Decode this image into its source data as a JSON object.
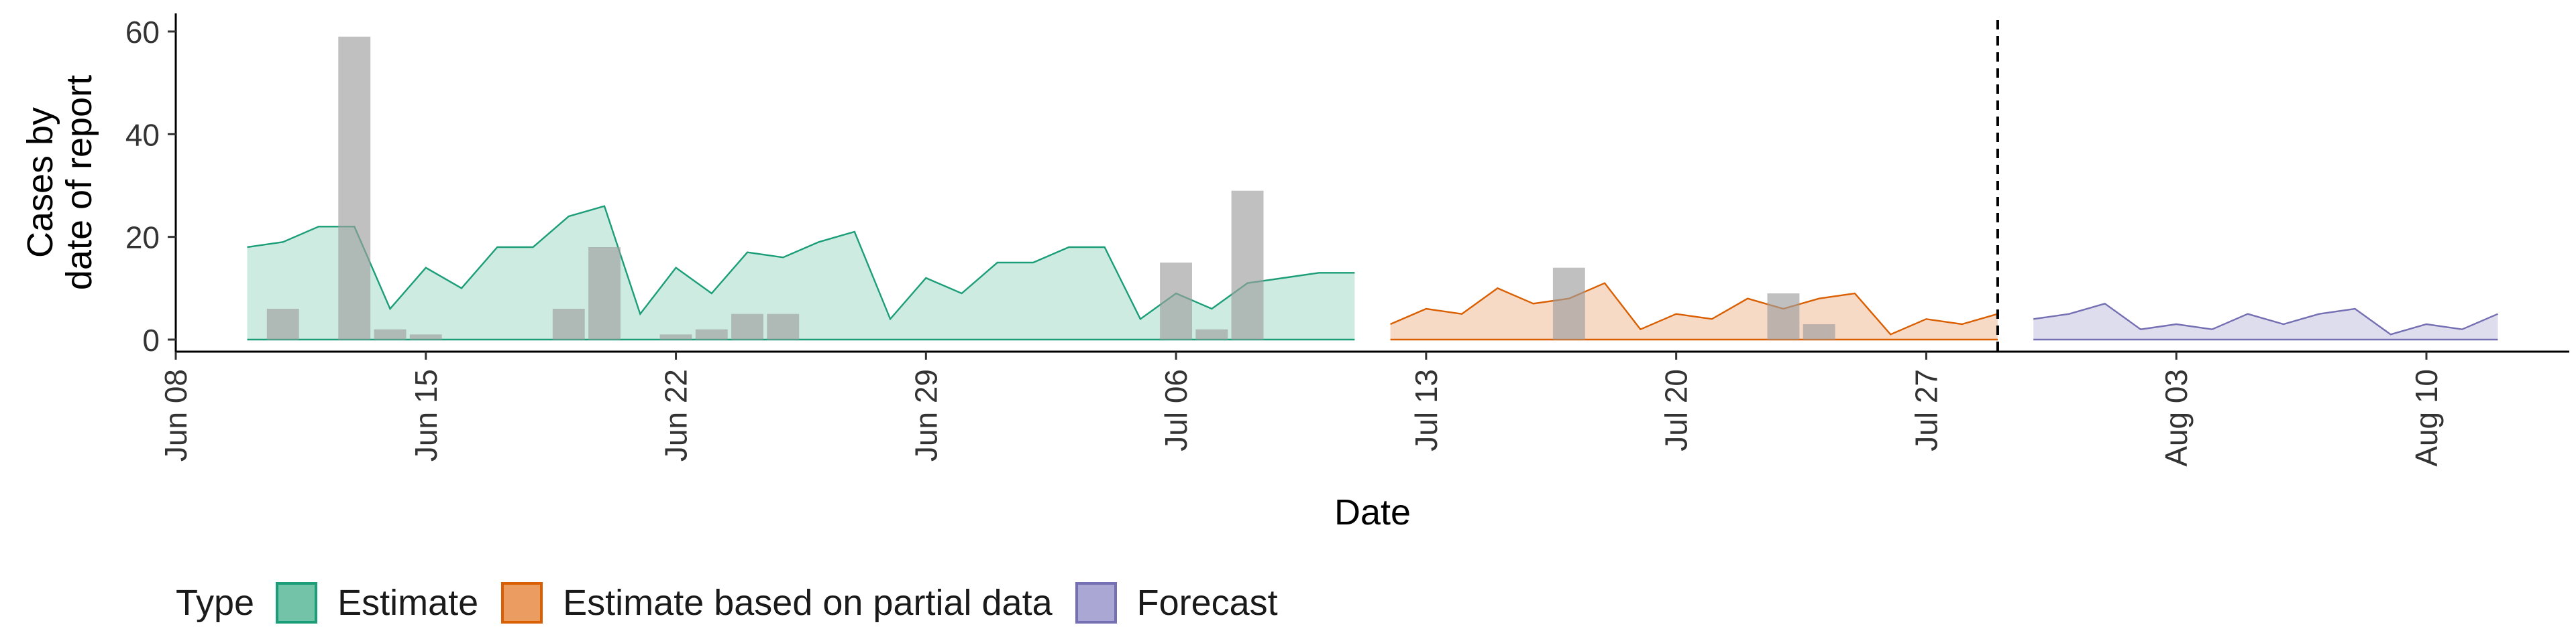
{
  "chart_data": {
    "type": "area",
    "xlabel": "Date",
    "ylabel": [
      "Cases by",
      "date of report"
    ],
    "ylim": [
      0,
      60
    ],
    "yticks": [
      0,
      20,
      40,
      60
    ],
    "xlim": [
      "2020-06-08",
      "2020-08-14"
    ],
    "xticks": [
      {
        "date": "2020-06-08",
        "label": "Jun 08"
      },
      {
        "date": "2020-06-15",
        "label": "Jun 15"
      },
      {
        "date": "2020-06-22",
        "label": "Jun 22"
      },
      {
        "date": "2020-06-29",
        "label": "Jun 29"
      },
      {
        "date": "2020-07-06",
        "label": "Jul 06"
      },
      {
        "date": "2020-07-13",
        "label": "Jul 13"
      },
      {
        "date": "2020-07-20",
        "label": "Jul 20"
      },
      {
        "date": "2020-07-27",
        "label": "Jul 27"
      },
      {
        "date": "2020-08-03",
        "label": "Aug 03"
      },
      {
        "date": "2020-08-10",
        "label": "Aug 10"
      }
    ],
    "forecast_start_line": "2020-07-29",
    "series": [
      {
        "name": "Estimate",
        "color": "#1b9e77",
        "fill": "#c5e7dd",
        "x": [
          "2020-06-10",
          "2020-06-11",
          "2020-06-12",
          "2020-06-13",
          "2020-06-14",
          "2020-06-15",
          "2020-06-16",
          "2020-06-17",
          "2020-06-18",
          "2020-06-19",
          "2020-06-20",
          "2020-06-21",
          "2020-06-22",
          "2020-06-23",
          "2020-06-24",
          "2020-06-25",
          "2020-06-26",
          "2020-06-27",
          "2020-06-28",
          "2020-06-29",
          "2020-06-30",
          "2020-07-01",
          "2020-07-02",
          "2020-07-03",
          "2020-07-04",
          "2020-07-05",
          "2020-07-06",
          "2020-07-07",
          "2020-07-08",
          "2020-07-09",
          "2020-07-10",
          "2020-07-11"
        ],
        "values": [
          18,
          19,
          22,
          22,
          6,
          14,
          10,
          18,
          18,
          24,
          26,
          5,
          14,
          9,
          17,
          16,
          19,
          21,
          4,
          12,
          9,
          15,
          15,
          18,
          18,
          4,
          9,
          6,
          11,
          12,
          13,
          13
        ]
      },
      {
        "name": "Estimate based on partial data",
        "color": "#d95f02",
        "fill": "#f4d4bc",
        "x": [
          "2020-07-12",
          "2020-07-13",
          "2020-07-14",
          "2020-07-15",
          "2020-07-16",
          "2020-07-17",
          "2020-07-18",
          "2020-07-19",
          "2020-07-20",
          "2020-07-21",
          "2020-07-22",
          "2020-07-23",
          "2020-07-24",
          "2020-07-25",
          "2020-07-26",
          "2020-07-27",
          "2020-07-28",
          "2020-07-29"
        ],
        "values": [
          3,
          6,
          5,
          10,
          7,
          8,
          11,
          2,
          5,
          4,
          8,
          6,
          8,
          9,
          1,
          4,
          3,
          5
        ]
      },
      {
        "name": "Forecast",
        "color": "#7570b3",
        "fill": "#d8d7ea",
        "x": [
          "2020-07-30",
          "2020-07-31",
          "2020-08-01",
          "2020-08-02",
          "2020-08-03",
          "2020-08-04",
          "2020-08-05",
          "2020-08-06",
          "2020-08-07",
          "2020-08-08",
          "2020-08-09",
          "2020-08-10",
          "2020-08-11",
          "2020-08-12"
        ],
        "values": [
          4,
          5,
          7,
          2,
          3,
          2,
          5,
          3,
          5,
          6,
          1,
          3,
          2,
          5
        ]
      }
    ],
    "bars": {
      "color": "#9e9e9e",
      "x": [
        "2020-06-11",
        "2020-06-13",
        "2020-06-14",
        "2020-06-15",
        "2020-06-19",
        "2020-06-20",
        "2020-06-22",
        "2020-06-23",
        "2020-06-24",
        "2020-06-25",
        "2020-07-06",
        "2020-07-07",
        "2020-07-08",
        "2020-07-17",
        "2020-07-23",
        "2020-07-24"
      ],
      "values": [
        6,
        59,
        2,
        1,
        6,
        18,
        1,
        2,
        5,
        5,
        15,
        2,
        29,
        14,
        9,
        3
      ]
    }
  },
  "legend": {
    "title": "Type",
    "items": [
      {
        "label": "Estimate",
        "fill": "#72c3a8",
        "border": "#1b9e77"
      },
      {
        "label": "Estimate based on partial data",
        "fill": "#eb9c61",
        "border": "#d95f02"
      },
      {
        "label": "Forecast",
        "fill": "#aaa7d4",
        "border": "#7570b3"
      }
    ]
  }
}
